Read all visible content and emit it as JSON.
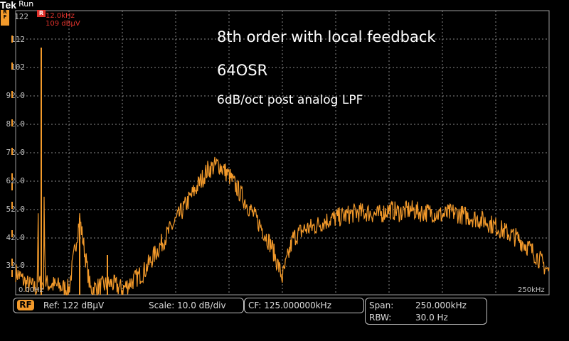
{
  "header": {
    "brand": "Tek",
    "run_state": "Run",
    "rf_tab": [
      "R",
      "F"
    ]
  },
  "marker": {
    "flag": "R",
    "frequency": "12.0kHz",
    "level": "109 dBµV"
  },
  "y_axis": {
    "labels": [
      "122",
      "112",
      "102",
      "92.0",
      "82.0",
      "72.0",
      "62.0",
      "52.0",
      "42.0",
      "32.0"
    ]
  },
  "x_axis": {
    "start_label": "0.00Hz",
    "stop_label": "250kHz"
  },
  "annotations": {
    "line1": "8th order with local feedback",
    "line2": "64OSR",
    "line3": "6dB/oct post analog LPF"
  },
  "status": {
    "rf_badge": "RF",
    "ref": "Ref: 122 dBµV",
    "scale": "Scale: 10.0 dB/div",
    "cf": "CF:  125.000000kHz",
    "span_label": "Span:",
    "span_value": "250.000kHz",
    "rbw_label": "RBW:",
    "rbw_value": "30.0 Hz"
  },
  "colors": {
    "trace": "#f39a2b",
    "marker": "#e0322c",
    "grid": "#9a9a9a",
    "background": "#000000"
  },
  "chart_data": {
    "type": "line",
    "x_unit": "kHz",
    "y_unit": "dBµV",
    "xlim": [
      0,
      250
    ],
    "ylim": [
      22,
      122
    ],
    "grid": true,
    "series": [
      {
        "x": [
          0,
          5,
          10,
          12,
          14,
          20,
          25,
          30,
          35,
          40,
          45,
          50,
          55,
          60,
          65,
          70,
          75,
          80,
          85,
          90,
          95,
          100,
          105,
          110,
          115,
          120,
          125,
          130,
          135,
          140,
          145,
          150,
          155,
          160,
          165,
          170,
          175,
          180,
          185,
          190,
          195,
          200,
          205,
          210,
          215,
          220,
          225,
          230,
          235,
          240,
          245,
          250
        ],
        "y": [
          30,
          26,
          24,
          109,
          26,
          25,
          24,
          49,
          24,
          25,
          26,
          24,
          27,
          30,
          36,
          42,
          48,
          54,
          60,
          66,
          68,
          64,
          58,
          52,
          46,
          39,
          28,
          42,
          45,
          46,
          48,
          49,
          50,
          51,
          51,
          50,
          52,
          51,
          52,
          51,
          51,
          50,
          51,
          50,
          49,
          48,
          46,
          44,
          42,
          39,
          35,
          30
        ]
      }
    ],
    "spikes": [
      {
        "x": 12,
        "y": 109
      },
      {
        "x": 30,
        "y": 49
      },
      {
        "x": 43,
        "y": 36
      }
    ]
  }
}
